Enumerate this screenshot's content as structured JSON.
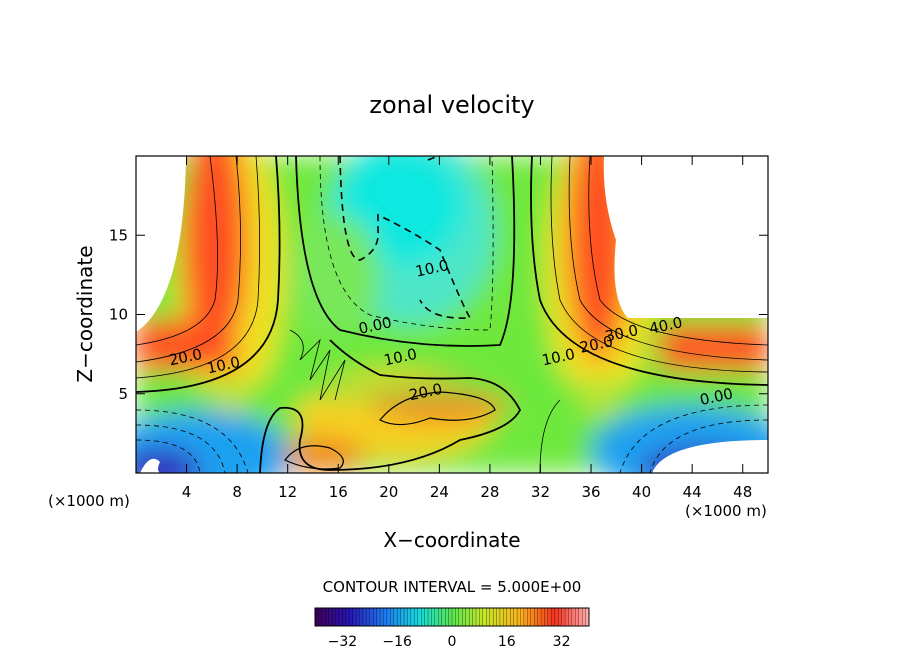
{
  "chart_data": {
    "type": "heatmap",
    "title": "zonal velocity",
    "xlabel": "X−coordinate",
    "ylabel": "Z−coordinate",
    "x_unit": "(×1000 m)",
    "z_unit": "(×1000 m)",
    "xlim": [
      0,
      50
    ],
    "ylim": [
      0,
      20
    ],
    "x_ticks": [
      4,
      8,
      12,
      16,
      20,
      24,
      28,
      32,
      36,
      40,
      44,
      48
    ],
    "y_ticks": [
      5,
      10,
      15
    ],
    "contour_interval_text": "CONTOUR INTERVAL = 5.000E+00",
    "colorbar": {
      "range": [
        -40,
        40
      ],
      "ticks": [
        -32,
        -16,
        0,
        16,
        32
      ],
      "tick_labels": [
        "−32",
        "−16",
        "0",
        "16",
        "32"
      ]
    },
    "contour_labels": [
      {
        "text": "20.0",
        "x": 4.0,
        "z": 7.0
      },
      {
        "text": "10.0",
        "x": 7.0,
        "z": 6.5
      },
      {
        "text": "0.00",
        "x": 19.0,
        "z": 9.0
      },
      {
        "text": "10.0",
        "x": 21.0,
        "z": 7.0
      },
      {
        "text": "20.0",
        "x": 23.0,
        "z": 4.8
      },
      {
        "text": "10.0",
        "x": 23.5,
        "z": 12.6
      },
      {
        "text": "10.0",
        "x": 33.5,
        "z": 7.0
      },
      {
        "text": "20.0",
        "x": 36.5,
        "z": 7.8
      },
      {
        "text": "30.0",
        "x": 38.5,
        "z": 8.5
      },
      {
        "text": "40.0",
        "x": 42.0,
        "z": 9.0
      },
      {
        "text": "0.00",
        "x": 46.0,
        "z": 4.5
      }
    ]
  }
}
